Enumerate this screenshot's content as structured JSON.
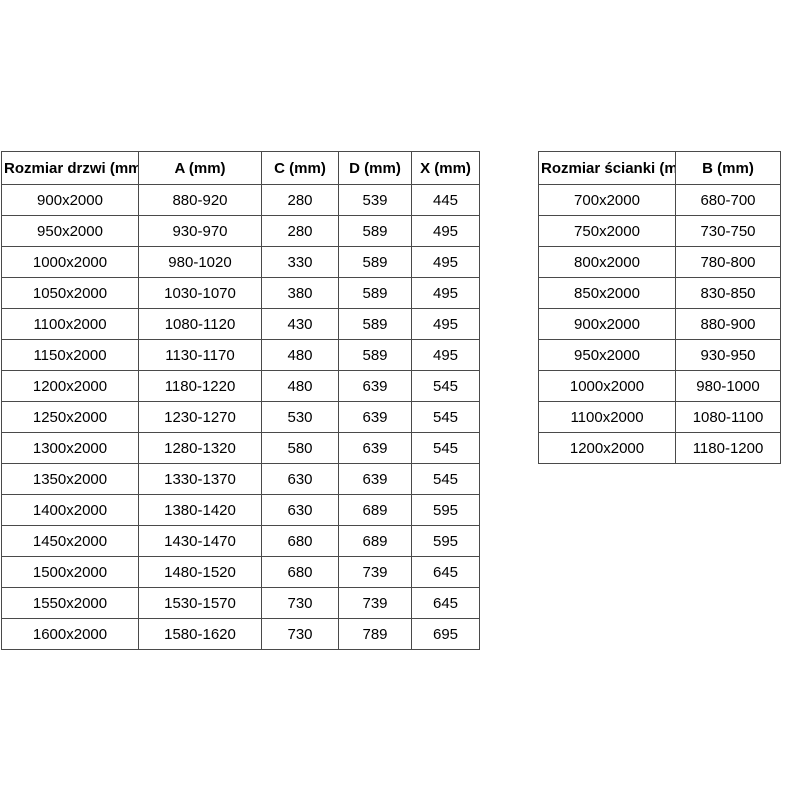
{
  "colors": {
    "background": "#ffffff",
    "border": "#4a4a4a",
    "text": "#000000"
  },
  "tables": [
    {
      "id": "door-sizes",
      "headers": [
        "Rozmiar drzwi (mm)",
        "A (mm)",
        "C (mm)",
        "D (mm)",
        "X (mm)"
      ],
      "rows": [
        [
          "900x2000",
          "880-920",
          "280",
          "539",
          "445"
        ],
        [
          "950x2000",
          "930-970",
          "280",
          "589",
          "495"
        ],
        [
          "1000x2000",
          "980-1020",
          "330",
          "589",
          "495"
        ],
        [
          "1050x2000",
          "1030-1070",
          "380",
          "589",
          "495"
        ],
        [
          "1100x2000",
          "1080-1120",
          "430",
          "589",
          "495"
        ],
        [
          "1150x2000",
          "1130-1170",
          "480",
          "589",
          "495"
        ],
        [
          "1200x2000",
          "1180-1220",
          "480",
          "639",
          "545"
        ],
        [
          "1250x2000",
          "1230-1270",
          "530",
          "639",
          "545"
        ],
        [
          "1300x2000",
          "1280-1320",
          "580",
          "639",
          "545"
        ],
        [
          "1350x2000",
          "1330-1370",
          "630",
          "639",
          "545"
        ],
        [
          "1400x2000",
          "1380-1420",
          "630",
          "689",
          "595"
        ],
        [
          "1450x2000",
          "1430-1470",
          "680",
          "689",
          "595"
        ],
        [
          "1500x2000",
          "1480-1520",
          "680",
          "739",
          "645"
        ],
        [
          "1550x2000",
          "1530-1570",
          "730",
          "739",
          "645"
        ],
        [
          "1600x2000",
          "1580-1620",
          "730",
          "789",
          "695"
        ]
      ]
    },
    {
      "id": "wall-sizes",
      "headers": [
        "Rozmiar ścianki (mm)",
        "B (mm)"
      ],
      "rows": [
        [
          "700x2000",
          "680-700"
        ],
        [
          "750x2000",
          "730-750"
        ],
        [
          "800x2000",
          "780-800"
        ],
        [
          "850x2000",
          "830-850"
        ],
        [
          "900x2000",
          "880-900"
        ],
        [
          "950x2000",
          "930-950"
        ],
        [
          "1000x2000",
          "980-1000"
        ],
        [
          "1100x2000",
          "1080-1100"
        ],
        [
          "1200x2000",
          "1180-1200"
        ]
      ]
    }
  ]
}
